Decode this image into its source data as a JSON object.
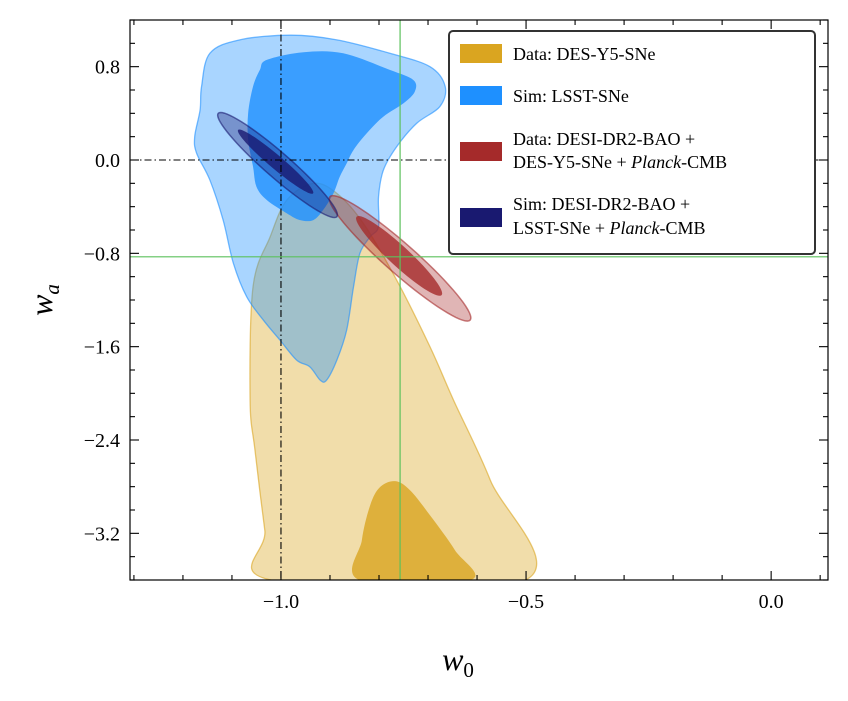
{
  "chart_data": {
    "type": "contour",
    "xlabel": "w",
    "xlabel_sub": "0",
    "ylabel": "w",
    "ylabel_sub": "a",
    "xlim": [
      -1.308,
      0.116
    ],
    "ylim": [
      -3.6,
      1.2
    ],
    "xticks": [
      -1.0,
      -0.5,
      0.0
    ],
    "xtick_labels": [
      "−1.0",
      "−0.5",
      "0.0"
    ],
    "xminor_step": 0.1,
    "yticks": [
      0.8,
      0.0,
      -0.8,
      -1.6,
      -2.4,
      -3.2
    ],
    "ytick_labels": [
      "0.8",
      "0.0",
      "−0.8",
      "−1.6",
      "−2.4",
      "−3.2"
    ],
    "yminor_step": 0.2,
    "grid": false,
    "legend_position": "top-right",
    "reference_lines": [
      {
        "kind": "vertical",
        "value": -1.0,
        "style": "dash-dot",
        "color": "#000000"
      },
      {
        "kind": "horizontal",
        "value": 0.0,
        "style": "dash-dot",
        "color": "#000000"
      },
      {
        "kind": "vertical",
        "value": -0.757,
        "style": "solid",
        "color": "#5cc15c"
      },
      {
        "kind": "horizontal",
        "value": -0.83,
        "style": "solid",
        "color": "#5cc15c"
      }
    ],
    "series": [
      {
        "name": "Data: DES-Y5-SNe",
        "color": "#DAA520",
        "contours": [
          [
            [
              -1.018,
              -3.602
            ],
            [
              -1.033,
              -3.173
            ],
            [
              -1.053,
              -2.487
            ],
            [
              -1.063,
              -2.058
            ],
            [
              -1.057,
              -1.087
            ],
            [
              -1.022,
              -0.658
            ],
            [
              -0.988,
              -0.343
            ],
            [
              -0.934,
              -0.2
            ],
            [
              -0.886,
              -0.286
            ],
            [
              -0.832,
              -0.543
            ],
            [
              -0.764,
              -1.029
            ],
            [
              -0.696,
              -1.601
            ],
            [
              -0.648,
              -2.058
            ],
            [
              -0.573,
              -2.744
            ],
            [
              -0.502,
              -3.602
            ]
          ],
          [
            [
              -0.839,
              -3.602
            ],
            [
              -0.835,
              -3.259
            ],
            [
              -0.818,
              -2.959
            ],
            [
              -0.798,
              -2.804
            ],
            [
              -0.767,
              -2.753
            ],
            [
              -0.737,
              -2.83
            ],
            [
              -0.696,
              -3.045
            ],
            [
              -0.645,
              -3.345
            ],
            [
              -0.614,
              -3.602
            ]
          ]
        ]
      },
      {
        "name": "Sim: LSST-SNe",
        "color": "#1E90FF",
        "contours": [
          [
            [
              -1.145,
              0.915
            ],
            [
              -1.084,
              1.03
            ],
            [
              -0.98,
              1.07
            ],
            [
              -0.886,
              1.03
            ],
            [
              -0.778,
              0.915
            ],
            [
              -0.696,
              0.8
            ],
            [
              -0.665,
              0.63
            ],
            [
              -0.676,
              0.457
            ],
            [
              -0.723,
              0.315
            ],
            [
              -0.764,
              0.114
            ],
            [
              -0.791,
              -0.086
            ],
            [
              -0.801,
              -0.315
            ],
            [
              -0.801,
              -0.572
            ],
            [
              -0.818,
              -0.658
            ],
            [
              -0.839,
              -0.8
            ],
            [
              -0.852,
              -1.087
            ],
            [
              -0.866,
              -1.458
            ],
            [
              -0.886,
              -1.715
            ],
            [
              -0.907,
              -1.887
            ],
            [
              -0.92,
              -1.887
            ],
            [
              -0.941,
              -1.773
            ],
            [
              -0.968,
              -1.715
            ],
            [
              -1.002,
              -1.544
            ],
            [
              -1.036,
              -1.372
            ],
            [
              -1.07,
              -1.172
            ],
            [
              -1.097,
              -0.887
            ],
            [
              -1.118,
              -0.515
            ],
            [
              -1.145,
              -0.172
            ],
            [
              -1.172,
              0.057
            ],
            [
              -1.176,
              0.2
            ],
            [
              -1.165,
              0.429
            ],
            [
              -1.162,
              0.63
            ]
          ],
          [
            [
              -1.029,
              0.858
            ],
            [
              -0.954,
              0.924
            ],
            [
              -0.873,
              0.915
            ],
            [
              -0.778,
              0.772
            ],
            [
              -0.73,
              0.686
            ],
            [
              -0.727,
              0.586
            ],
            [
              -0.75,
              0.486
            ],
            [
              -0.791,
              0.372
            ],
            [
              -0.825,
              0.229
            ],
            [
              -0.852,
              0.086
            ],
            [
              -0.866,
              -0.029
            ],
            [
              -0.88,
              -0.143
            ],
            [
              -0.893,
              -0.286
            ],
            [
              -0.914,
              -0.429
            ],
            [
              -0.934,
              -0.515
            ],
            [
              -0.961,
              -0.515
            ],
            [
              -0.988,
              -0.457
            ],
            [
              -1.029,
              -0.343
            ],
            [
              -1.05,
              -0.229
            ],
            [
              -1.057,
              -0.057
            ],
            [
              -1.067,
              0.172
            ],
            [
              -1.067,
              0.4
            ],
            [
              -1.057,
              0.63
            ],
            [
              -1.043,
              0.772
            ]
          ]
        ]
      },
      {
        "name": "Data: DESI-DR2-BAO + DES-Y5-SNe + Planck-CMB",
        "color": "#A52A2A",
        "ellipses": [
          {
            "center": [
              -0.757,
              -0.843
            ],
            "major": [
              0.143,
              -0.529
            ],
            "minor": [
              0.0202,
              0.096
            ]
          },
          {
            "center": [
              -0.759,
              -0.822
            ],
            "major": [
              0.0867,
              -0.336
            ],
            "minor": [
              0.0139,
              0.063
            ]
          }
        ]
      },
      {
        "name": "Sim: DESI-DR2-BAO + LSST-SNe + Planck-CMB",
        "color": "#191970",
        "ellipses": [
          {
            "center": [
              -1.007,
              -0.043
            ],
            "major": [
              0.121,
              -0.443
            ],
            "minor": [
              0.0168,
              0.081
            ]
          },
          {
            "center": [
              -1.011,
              -0.014
            ],
            "major": [
              0.0765,
              -0.272
            ],
            "minor": [
              0.0088,
              0.044
            ]
          }
        ]
      }
    ]
  },
  "legend": {
    "items": [
      {
        "lines": [
          "Data: DES-Y5-SNe"
        ],
        "color": "#DAA520"
      },
      {
        "lines": [
          "Sim: LSST-SNe"
        ],
        "color": "#1E90FF"
      },
      {
        "lines": [
          "Data: DESI-DR2-BAO +",
          "DES-Y5-SNe + ",
          "Planck",
          "-CMB"
        ],
        "color": "#A52A2A"
      },
      {
        "lines": [
          "Sim: DESI-DR2-BAO +",
          "LSST-SNe + ",
          "Planck",
          "-CMB"
        ],
        "color": "#191970"
      }
    ]
  }
}
